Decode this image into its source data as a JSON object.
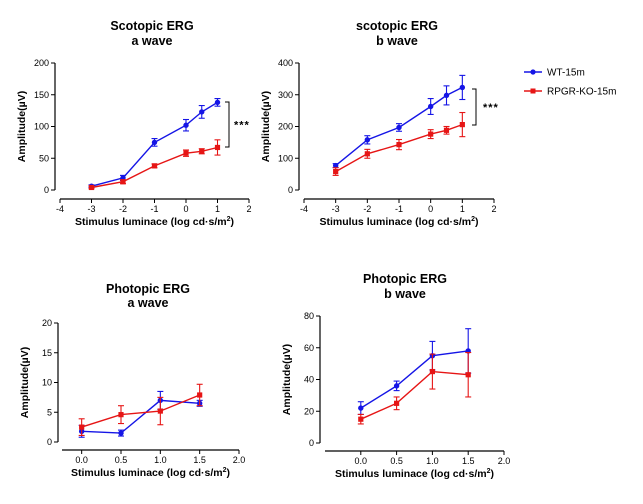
{
  "legend": {
    "entries": [
      {
        "label": "WT-15m",
        "color": "#1515e6",
        "marker": "circle"
      },
      {
        "label": "RPGR-KO-15m",
        "color": "#e61515",
        "marker": "square"
      }
    ]
  },
  "chart_data": [
    {
      "type": "line",
      "title_line1": "Scotopic ERG",
      "title_line2": "a wave",
      "xlabel": "Stimulus luminace (log cd·s/m",
      "xlabel_sup": "2",
      "xlabel_end": ")",
      "ylabel": "Amplitude(µV)",
      "xlim": [
        -4,
        2
      ],
      "ylim": [
        0,
        200
      ],
      "xticks": [
        -4,
        -3,
        -2,
        -1,
        0,
        1,
        2
      ],
      "yticks": [
        0,
        50,
        100,
        150,
        200
      ],
      "significance": "***",
      "series": [
        {
          "name": "WT-15m",
          "color": "#1515e6",
          "marker": "circle",
          "x": [
            -3,
            -2,
            -1,
            0,
            0.5,
            1
          ],
          "y": [
            6,
            19,
            75,
            102,
            123,
            138
          ],
          "err": [
            2,
            4,
            6,
            9,
            10,
            6
          ]
        },
        {
          "name": "RPGR-KO-15m",
          "color": "#e61515",
          "marker": "square",
          "x": [
            -3,
            -2,
            -1,
            0,
            0.5,
            1
          ],
          "y": [
            4,
            13,
            38,
            58,
            61,
            67
          ],
          "err": [
            2,
            3,
            3,
            5,
            4,
            12
          ]
        }
      ]
    },
    {
      "type": "line",
      "title_line1": "scotopic ERG",
      "title_line2": "b wave",
      "xlabel": "Stimulus luminace (log cd·s/m",
      "xlabel_sup": "2",
      "xlabel_end": ")",
      "ylabel": "Amplitude(µV)",
      "xlim": [
        -4,
        2
      ],
      "ylim": [
        0,
        400
      ],
      "xticks": [
        -4,
        -3,
        -2,
        -1,
        0,
        1,
        2
      ],
      "yticks": [
        0,
        100,
        200,
        300,
        400
      ],
      "significance": "***",
      "series": [
        {
          "name": "WT-15m",
          "color": "#1515e6",
          "marker": "circle",
          "x": [
            -3,
            -2,
            -1,
            0,
            0.5,
            1
          ],
          "y": [
            77,
            158,
            197,
            263,
            298,
            323
          ],
          "err": [
            6,
            13,
            12,
            25,
            30,
            38
          ]
        },
        {
          "name": "RPGR-KO-15m",
          "color": "#e61515",
          "marker": "square",
          "x": [
            -3,
            -2,
            -1,
            0,
            0.5,
            1
          ],
          "y": [
            58,
            114,
            143,
            176,
            188,
            206
          ],
          "err": [
            12,
            14,
            16,
            14,
            12,
            38
          ]
        }
      ]
    },
    {
      "type": "line",
      "title_line1": "Photopic ERG",
      "title_line2": "a wave",
      "xlabel": "Stimulus luminace (log cd·s/m",
      "xlabel_sup": "2",
      "xlabel_end": ")",
      "ylabel": "Amplitude(µV)",
      "xlim": [
        -0.25,
        2.0
      ],
      "ylim": [
        0,
        20
      ],
      "xticks": [
        0.0,
        0.5,
        1.0,
        1.5,
        2.0
      ],
      "xtick_labels": [
        "0.0",
        "0.5",
        "1.0",
        "1.5",
        "2.0"
      ],
      "yticks": [
        0,
        5,
        10,
        15,
        20
      ],
      "series": [
        {
          "name": "WT-15m",
          "color": "#1515e6",
          "marker": "circle",
          "x": [
            0.0,
            0.5,
            1.0,
            1.5
          ],
          "y": [
            1.8,
            1.5,
            7.0,
            6.5
          ],
          "err": [
            1.0,
            0.5,
            1.5,
            0.5
          ]
        },
        {
          "name": "RPGR-KO-15m",
          "color": "#e61515",
          "marker": "square",
          "x": [
            0.0,
            0.5,
            1.0,
            1.5
          ],
          "y": [
            2.5,
            4.6,
            5.2,
            7.9
          ],
          "err": [
            1.4,
            1.5,
            2.3,
            1.8
          ]
        }
      ]
    },
    {
      "type": "line",
      "title_line1": "Photopic ERG",
      "title_line2": "b wave",
      "xlabel": "Stimulus luminace (log cd·s/m",
      "xlabel_sup": "2",
      "xlabel_end": ")",
      "ylabel": "Amplitude(µV)",
      "xlim": [
        -0.5,
        2.0
      ],
      "ylim": [
        0,
        80
      ],
      "xticks": [
        0.0,
        0.5,
        1.0,
        1.5,
        2.0
      ],
      "xtick_labels": [
        "0.0",
        "0.5",
        "1.0",
        "1.5",
        "2.0"
      ],
      "yticks": [
        0,
        20,
        40,
        60,
        80
      ],
      "series": [
        {
          "name": "WT-15m",
          "color": "#1515e6",
          "marker": "circle",
          "x": [
            0.0,
            0.5,
            1.0,
            1.5
          ],
          "y": [
            22,
            36,
            55,
            58
          ],
          "err": [
            4,
            3,
            9,
            14
          ]
        },
        {
          "name": "RPGR-KO-15m",
          "color": "#e61515",
          "marker": "square",
          "x": [
            0.0,
            0.5,
            1.0,
            1.5
          ],
          "y": [
            15,
            25,
            45,
            43
          ],
          "err": [
            3,
            4,
            11,
            14
          ]
        }
      ]
    }
  ]
}
